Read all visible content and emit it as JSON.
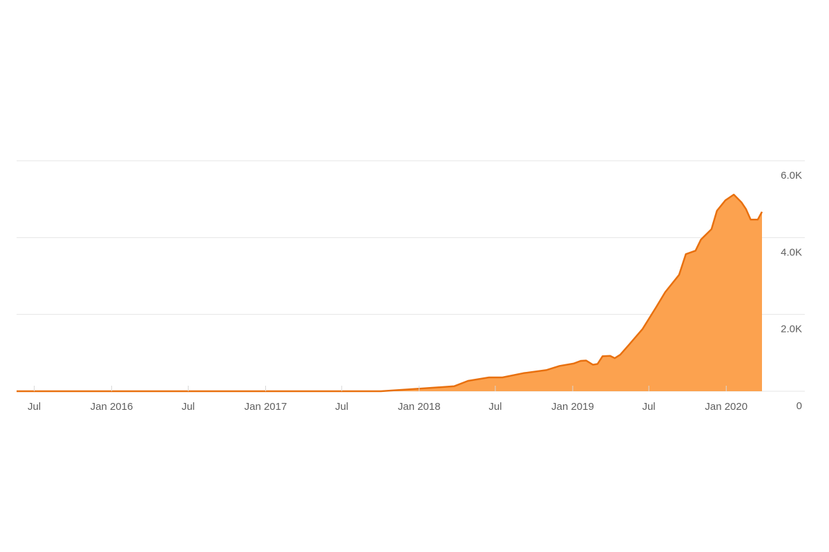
{
  "chart_data": {
    "type": "area",
    "title": "",
    "xlabel": "",
    "ylabel": "",
    "x_axis": "date",
    "xlim": [
      "2015-05-20",
      "2020-03-26"
    ],
    "ylim": [
      0,
      6000
    ],
    "y_position": "right",
    "grid": "horizontal",
    "legend": "none",
    "colors": {
      "fill": "#fca24f",
      "line": "#e8700f",
      "grid": "#e5e5e5",
      "text": "#5f5f5f"
    },
    "x_ticks": [
      {
        "date": "2015-07-01",
        "label": "Jul"
      },
      {
        "date": "2016-01-01",
        "label": "Jan 2016"
      },
      {
        "date": "2016-07-01",
        "label": "Jul"
      },
      {
        "date": "2017-01-01",
        "label": "Jan 2017"
      },
      {
        "date": "2017-07-01",
        "label": "Jul"
      },
      {
        "date": "2018-01-01",
        "label": "Jan 2018"
      },
      {
        "date": "2018-07-01",
        "label": "Jul"
      },
      {
        "date": "2019-01-01",
        "label": "Jan 2019"
      },
      {
        "date": "2019-07-01",
        "label": "Jul"
      },
      {
        "date": "2020-01-01",
        "label": "Jan 2020"
      }
    ],
    "y_ticks": [
      {
        "value": 0,
        "label": "0"
      },
      {
        "value": 2000,
        "label": "2.0K"
      },
      {
        "value": 4000,
        "label": "4.0K"
      },
      {
        "value": 6000,
        "label": "6.0K"
      }
    ],
    "series": [
      {
        "points": [
          [
            "2015-05-20",
            0
          ],
          [
            "2017-10-02",
            0
          ],
          [
            "2018-01-05",
            70
          ],
          [
            "2018-03-25",
            130
          ],
          [
            "2018-04-27",
            270
          ],
          [
            "2018-06-16",
            360
          ],
          [
            "2018-07-18",
            360
          ],
          [
            "2018-09-06",
            470
          ],
          [
            "2018-10-30",
            550
          ],
          [
            "2018-12-01",
            660
          ],
          [
            "2019-01-03",
            720
          ],
          [
            "2019-01-20",
            790
          ],
          [
            "2019-02-02",
            800
          ],
          [
            "2019-02-18",
            690
          ],
          [
            "2019-03-01",
            710
          ],
          [
            "2019-03-13",
            910
          ],
          [
            "2019-03-31",
            920
          ],
          [
            "2019-04-11",
            860
          ],
          [
            "2019-04-24",
            950
          ],
          [
            "2019-05-14",
            1200
          ],
          [
            "2019-06-16",
            1620
          ],
          [
            "2019-07-19",
            2200
          ],
          [
            "2019-08-09",
            2580
          ],
          [
            "2019-09-11",
            3030
          ],
          [
            "2019-09-27",
            3570
          ],
          [
            "2019-10-20",
            3660
          ],
          [
            "2019-11-02",
            3950
          ],
          [
            "2019-11-27",
            4220
          ],
          [
            "2019-12-10",
            4700
          ],
          [
            "2019-12-30",
            4970
          ],
          [
            "2020-01-19",
            5120
          ],
          [
            "2020-02-06",
            4920
          ],
          [
            "2020-02-17",
            4740
          ],
          [
            "2020-02-28",
            4470
          ],
          [
            "2020-03-16",
            4470
          ],
          [
            "2020-03-26",
            4670
          ]
        ]
      }
    ]
  }
}
